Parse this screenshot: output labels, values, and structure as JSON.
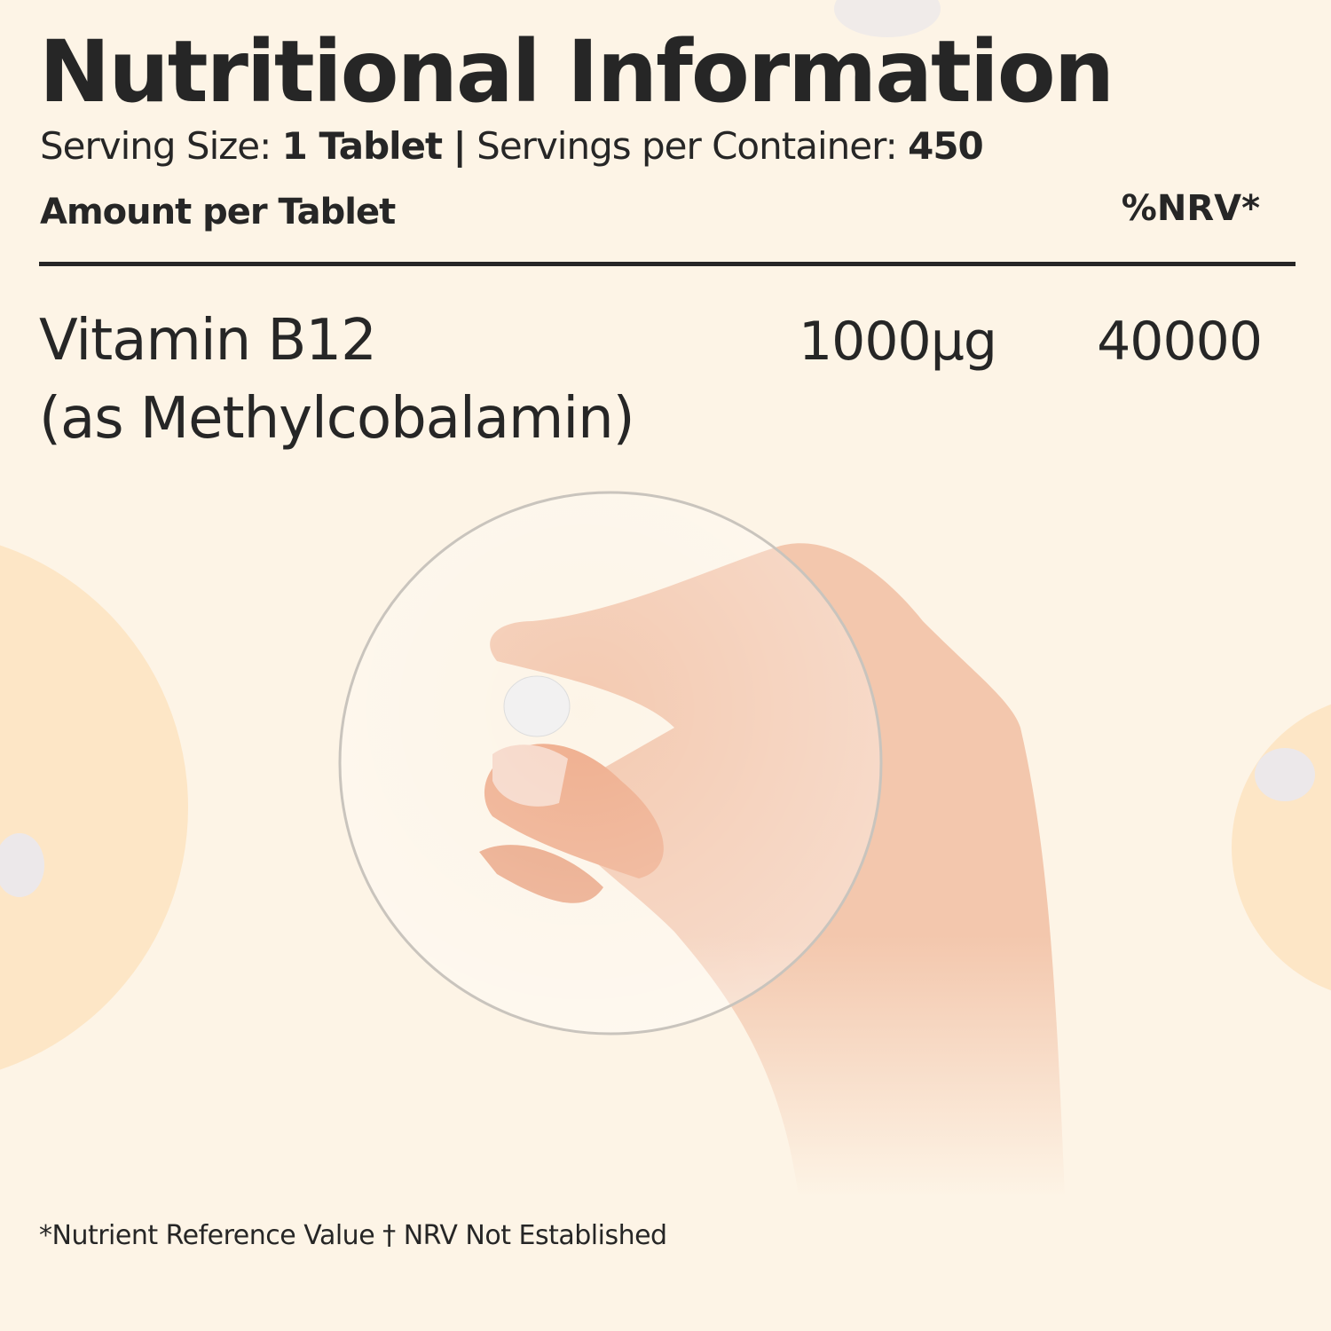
{
  "header": {
    "title": "Nutritional Information",
    "serving_size_label": "Serving Size:",
    "serving_size_value": "1 Tablet",
    "separator": "|",
    "servings_label": "Servings per Container:",
    "servings_value": "450"
  },
  "table": {
    "amount_header": "Amount per Tablet",
    "nrv_header": "%NRV*",
    "rows": [
      {
        "nutrient": "Vitamin B12",
        "form": "(as Methylcobalamin)",
        "amount": "1000µg",
        "nrv": "40000"
      }
    ]
  },
  "footnote": "*Nutrient Reference Value † NRV Not Established",
  "colors": {
    "background": "#fdf4e6",
    "accent_circle": "#fde6c6",
    "text": "#262626",
    "skin": "#eeaa88"
  },
  "illustration": {
    "icons": [
      "hand-holding-tablet-image",
      "magnifier-lens-image",
      "tablet-icon"
    ]
  }
}
